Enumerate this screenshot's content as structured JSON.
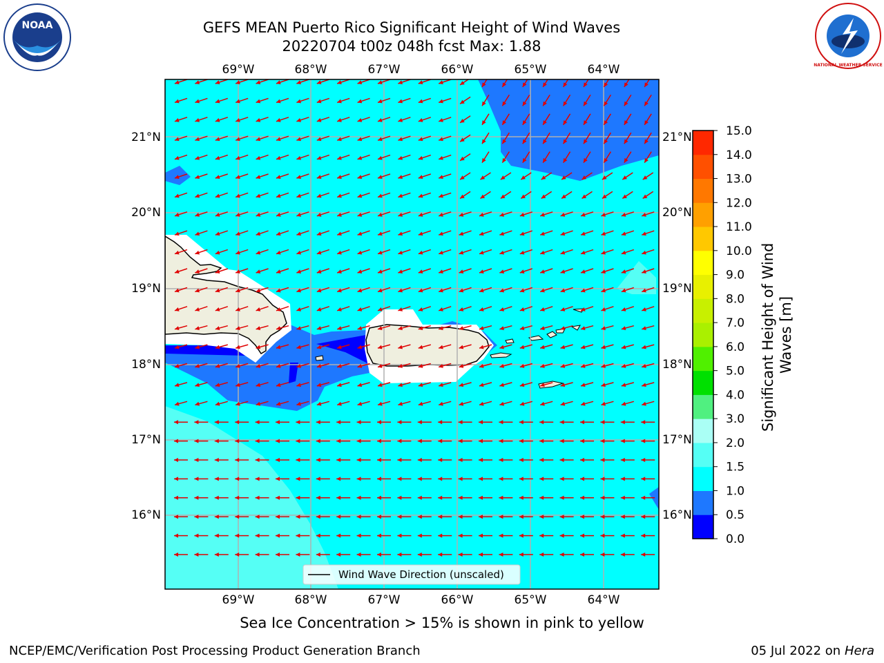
{
  "title": {
    "line1": "GEFS MEAN Puerto Rico Significant Height of Wind Waves",
    "line2": "20220704 t00z 048h fcst   Max: 1.88"
  },
  "map": {
    "lon_labels": [
      "69°W",
      "68°W",
      "67°W",
      "66°W",
      "65°W",
      "64°W"
    ],
    "lat_labels": [
      "21°N",
      "20°N",
      "19°N",
      "18°N",
      "17°N",
      "16°N"
    ],
    "legend_label": "Wind Wave Direction (unscaled)"
  },
  "colorbar": {
    "label": "Significant Height of Wind Waves [m]",
    "ticks": [
      "0.0",
      "0.5",
      "1.0",
      "1.5",
      "2.0",
      "3.0",
      "4.0",
      "5.0",
      "6.0",
      "7.0",
      "8.0",
      "9.0",
      "10.0",
      "11.0",
      "12.0",
      "13.0",
      "14.0",
      "15.0"
    ],
    "colors": [
      "#0000ff",
      "#1e78ff",
      "#00ffff",
      "#55fff5",
      "#aafff5",
      "#50f080",
      "#00e000",
      "#50f000",
      "#aaf000",
      "#c8f000",
      "#e8f000",
      "#ffff00",
      "#ffc800",
      "#ffa000",
      "#ff7800",
      "#ff5000",
      "#ff2800"
    ]
  },
  "subcaption": "Sea Ice Concentration > 15% is shown in pink to yellow",
  "footer": {
    "left": "NCEP/EMC/Verification Post Processing Product Generation Branch",
    "right_prefix": "05 Jul 2022 on ",
    "right_machine": "Hera"
  },
  "logos": {
    "noaa_text": "NOAA",
    "nws_text": "NATIONAL WEATHER SERVICE"
  }
}
